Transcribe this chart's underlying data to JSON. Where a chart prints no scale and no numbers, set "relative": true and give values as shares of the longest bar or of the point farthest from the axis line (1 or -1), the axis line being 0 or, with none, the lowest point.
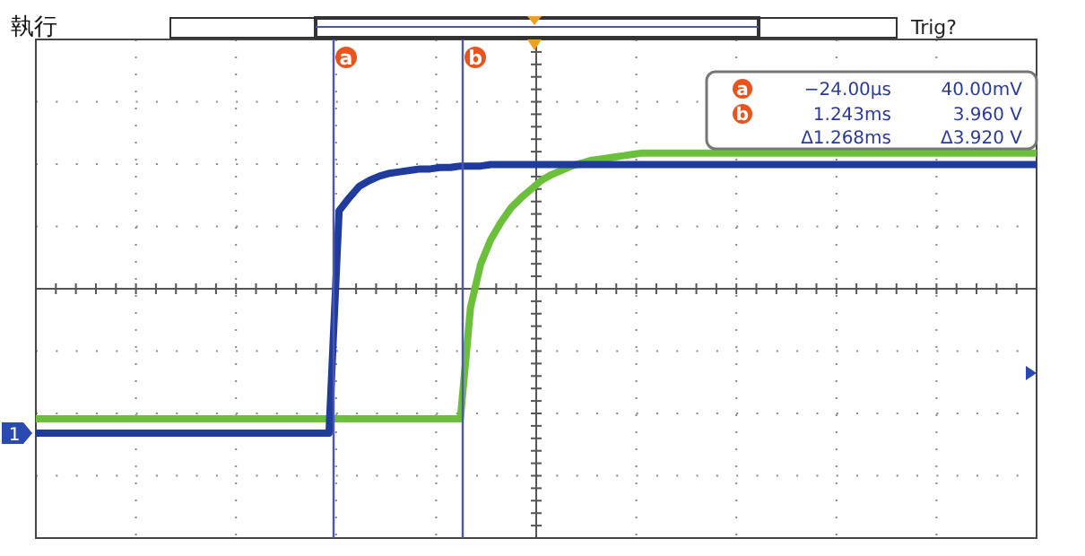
{
  "chart_data": {
    "type": "line",
    "relative": true,
    "title": "執行",
    "grid": true,
    "line_style": "solid",
    "categories": [
      null,
      null,
      null,
      null,
      null,
      null,
      null,
      null,
      null,
      null,
      null,
      null,
      null,
      null,
      null,
      null,
      null,
      null,
      null,
      null,
      null,
      null,
      null,
      null,
      null,
      null,
      null,
      null,
      null,
      null,
      null,
      null,
      null,
      null,
      null,
      null,
      null,
      null,
      null,
      null,
      null,
      null,
      null,
      null,
      null,
      null,
      null,
      null,
      null,
      null,
      null,
      null,
      null,
      null,
      null,
      null,
      null,
      null,
      null,
      null,
      null,
      null,
      null,
      null,
      null,
      null,
      null,
      null,
      null,
      null,
      null,
      null,
      null,
      null,
      null,
      null,
      null,
      null,
      null,
      null,
      null,
      null,
      null,
      null,
      null,
      null,
      null,
      null,
      null,
      null,
      null,
      null,
      null,
      null,
      null,
      null,
      null,
      null,
      null,
      null
    ],
    "series": [
      {
        "color": "#6cbf3a",
        "values": [
          -0.9,
          -0.9,
          -0.9,
          -0.9,
          -0.9,
          -0.9,
          -0.9,
          -0.9,
          -0.9,
          -0.9,
          -0.9,
          -0.9,
          -0.9,
          -0.9,
          -0.9,
          -0.9,
          -0.9,
          -0.9,
          -0.9,
          -0.9,
          -0.9,
          -0.9,
          -0.9,
          -0.9,
          -0.9,
          -0.9,
          -0.9,
          -0.9,
          -0.9,
          -0.9,
          -0.9,
          -0.9,
          -0.9,
          -0.9,
          -0.9,
          -0.9,
          -0.9,
          -0.9,
          -0.9,
          -0.9,
          -0.9,
          -0.9,
          -0.9,
          -0.13,
          0.17,
          0.34,
          0.46,
          0.56,
          0.63,
          0.69,
          0.75,
          0.79,
          0.82,
          0.85,
          0.87,
          0.89,
          0.9,
          0.91,
          0.92,
          0.93,
          0.94,
          0.94,
          0.94,
          0.94,
          0.94,
          0.94,
          0.94,
          0.94,
          0.94,
          0.94,
          0.94,
          0.94,
          0.94,
          0.94,
          0.94,
          0.94,
          0.94,
          0.94,
          0.94,
          0.94,
          0.94,
          0.94,
          0.94,
          0.94,
          0.94,
          0.94,
          0.94,
          0.94,
          0.94,
          0.94,
          0.94,
          0.94,
          0.94,
          0.94,
          0.94,
          0.94,
          0.94,
          0.94,
          0.94,
          0.94
        ]
      },
      {
        "color": "#1f3c9c",
        "values": [
          -1,
          -1,
          -1,
          -1,
          -1,
          -1,
          -1,
          -1,
          -1,
          -1,
          -1,
          -1,
          -1,
          -1,
          -1,
          -1,
          -1,
          -1,
          -1,
          -1,
          -1,
          -1,
          -1,
          -1,
          -1,
          -1,
          -1,
          -1,
          -1,
          -1,
          0.54,
          0.63,
          0.71,
          0.75,
          0.78,
          0.8,
          0.81,
          0.82,
          0.83,
          0.83,
          0.84,
          0.84,
          0.85,
          0.85,
          0.85,
          0.86,
          0.86,
          0.86,
          0.86,
          0.86,
          0.86,
          0.86,
          0.86,
          0.86,
          0.86,
          0.86,
          0.86,
          0.86,
          0.86,
          0.86,
          0.86,
          0.86,
          0.86,
          0.86,
          0.86,
          0.86,
          0.86,
          0.86,
          0.86,
          0.86,
          0.86,
          0.86,
          0.86,
          0.86,
          0.86,
          0.86,
          0.86,
          0.86,
          0.86,
          0.86,
          0.86,
          0.86,
          0.86,
          0.86,
          0.86,
          0.86,
          0.86,
          0.86,
          0.86,
          0.86,
          0.86,
          0.86,
          0.86,
          0.86,
          0.86,
          0.86,
          0.86,
          0.86,
          0.86,
          0.86
        ]
      }
    ],
    "annotations": [
      "Trig?",
      "1",
      "a",
      "b",
      "a",
      "−24.00µs",
      "40.00mV",
      "b",
      "1.243ms",
      "3.960 V",
      "Δ1.268ms",
      "Δ3.920 V"
    ]
  }
}
